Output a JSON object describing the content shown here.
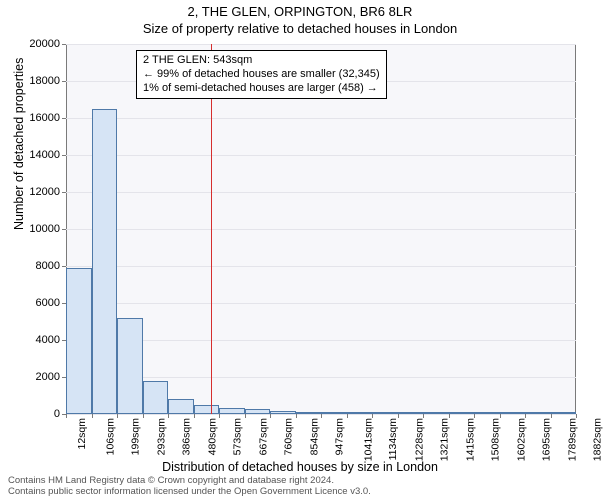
{
  "titles": {
    "line1": "2, THE GLEN, ORPINGTON, BR6 8LR",
    "line2": "Size of property relative to detached houses in London"
  },
  "axes": {
    "ylabel": "Number of detached properties",
    "xlabel": "Distribution of detached houses by size in London",
    "ylim": [
      0,
      20000
    ],
    "yticks": [
      0,
      2000,
      4000,
      6000,
      8000,
      10000,
      12000,
      14000,
      16000,
      18000,
      20000
    ],
    "xtick_labels": [
      "12sqm",
      "106sqm",
      "199sqm",
      "293sqm",
      "386sqm",
      "480sqm",
      "573sqm",
      "667sqm",
      "760sqm",
      "854sqm",
      "947sqm",
      "1041sqm",
      "1134sqm",
      "1228sqm",
      "1321sqm",
      "1415sqm",
      "1508sqm",
      "1602sqm",
      "1695sqm",
      "1789sqm",
      "1882sqm"
    ],
    "label_fontsize": 12.5,
    "tick_fontsize": 11
  },
  "chart": {
    "type": "histogram",
    "background_color": "#f7f7fa",
    "grid_color": "#e4e4ea",
    "border_color": "#7a7a7a",
    "bar_fill": "#d6e4f5",
    "bar_border": "#4f79a8",
    "marker_color": "#d62e2e",
    "marker_x_value": 543,
    "x_range": [
      12,
      1882
    ],
    "bar_bin_width": 93.5,
    "values": [
      7900,
      16500,
      5200,
      1800,
      800,
      500,
      350,
      250,
      180,
      120,
      100,
      80,
      60,
      50,
      40,
      30,
      25,
      20,
      18,
      15
    ]
  },
  "annotation": {
    "lines": {
      "l1": "2 THE GLEN: 543sqm",
      "l2": "← 99% of detached houses are smaller (32,345)",
      "l3": "1% of semi-detached houses are larger (458) →"
    },
    "fontsize": 11,
    "border": "#000000",
    "background": "#ffffff"
  },
  "footer": {
    "l1": "Contains HM Land Registry data © Crown copyright and database right 2024.",
    "l2": "Contains public sector information licensed under the Open Government Licence v3.0."
  }
}
